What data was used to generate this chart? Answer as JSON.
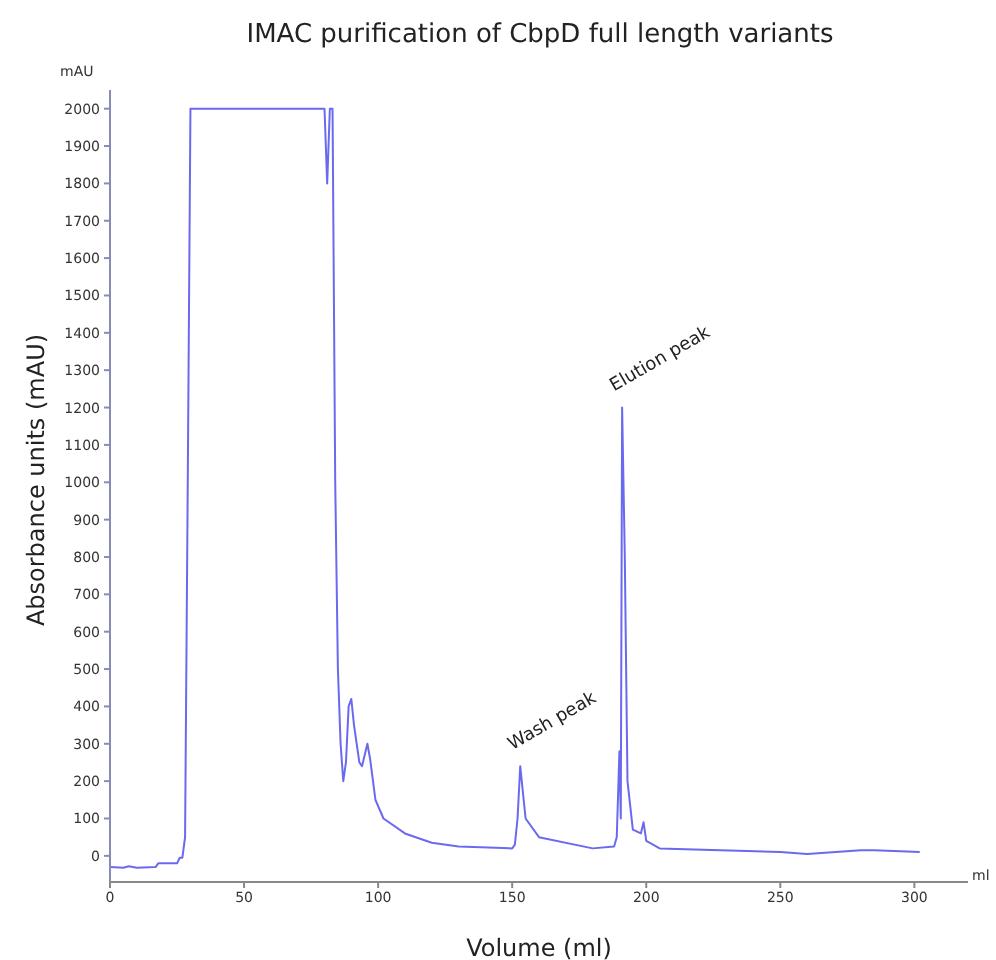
{
  "chart_data": {
    "type": "line",
    "title": "IMAC purification of CbpD full length variants",
    "xlabel": "Volume (ml)",
    "ylabel": "Absorbance units (mAU)",
    "annotations": [
      "mAU",
      "ml",
      {
        "text": "Wash peak",
        "x": 153,
        "y": 240
      },
      {
        "text": "Elution peak",
        "x": 191,
        "y": 1200
      }
    ],
    "x": [
      0,
      5,
      7,
      10,
      17,
      18,
      25,
      26,
      27,
      28,
      29,
      30,
      80,
      81,
      82,
      83,
      84,
      85,
      86,
      87,
      88,
      89,
      90,
      91,
      93,
      94,
      96,
      97,
      99,
      102,
      110,
      120,
      130,
      150,
      151,
      152,
      153,
      155,
      160,
      180,
      188,
      189,
      190,
      190.5,
      191,
      192,
      193,
      195,
      198,
      199,
      200,
      205,
      250,
      260,
      280,
      285,
      302
    ],
    "series": [
      {
        "color": "#6a6af0",
        "values": [
          -30,
          -32,
          -28,
          -32,
          -30,
          -20,
          -20,
          -5,
          -5,
          50,
          1000,
          2000,
          2000,
          1800,
          2000,
          2000,
          1000,
          500,
          300,
          200,
          250,
          400,
          420,
          350,
          250,
          240,
          300,
          260,
          150,
          100,
          60,
          35,
          25,
          20,
          30,
          100,
          240,
          100,
          50,
          20,
          25,
          50,
          280,
          100,
          1200,
          800,
          200,
          70,
          60,
          90,
          40,
          20,
          10,
          5,
          15,
          15,
          10
        ]
      }
    ],
    "xlim": [
      0,
      320
    ],
    "xticks": [
      0,
      50,
      100,
      150,
      200,
      250,
      300
    ],
    "ylim": [
      -70,
      2050
    ],
    "yticks": [
      0,
      100,
      200,
      300,
      400,
      500,
      600,
      700,
      800,
      900,
      1000,
      1100,
      1200,
      1300,
      1400,
      1500,
      1600,
      1700,
      1800,
      1900,
      2000
    ],
    "grid": false,
    "legend": false,
    "marker": "none",
    "line_style": "solid"
  }
}
